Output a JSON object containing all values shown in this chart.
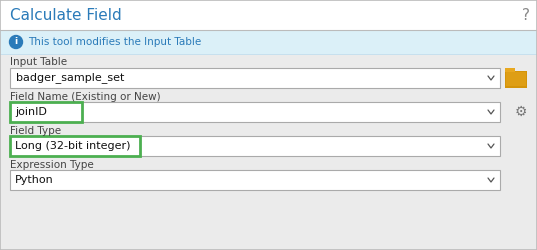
{
  "title": "Calculate Field",
  "title_color": "#2B7BB9",
  "question_mark": "?",
  "bg_color": "#EBEBEB",
  "title_bg_color": "#FFFFFF",
  "info_bg_color": "#DBF0F8",
  "info_text": "This tool modifies the Input Table",
  "info_icon_color": "#2B7BB9",
  "input_table_label": "Input Table",
  "input_table_value": "badger_sample_set",
  "field_name_label": "Field Name (Existing or New)",
  "field_name_value": "joinID",
  "field_type_label": "Field Type",
  "field_type_value": "Long (32-bit integer)",
  "expression_label": "Expression Type",
  "expression_value": "Python",
  "dropdown_color": "#FFFFFF",
  "border_color": "#AAAAAA",
  "highlight_border": "#4CAF50",
  "label_color": "#444444",
  "value_color": "#111111",
  "chevron_color": "#555555",
  "title_fontsize": 11,
  "label_fontsize": 7.5,
  "value_fontsize": 8.0,
  "outer_border_color": "#BBBBBB",
  "folder_color": "#D4940A",
  "folder_color2": "#E8A820",
  "gear_color": "#777777",
  "info_border_color": "#B8DCF0"
}
